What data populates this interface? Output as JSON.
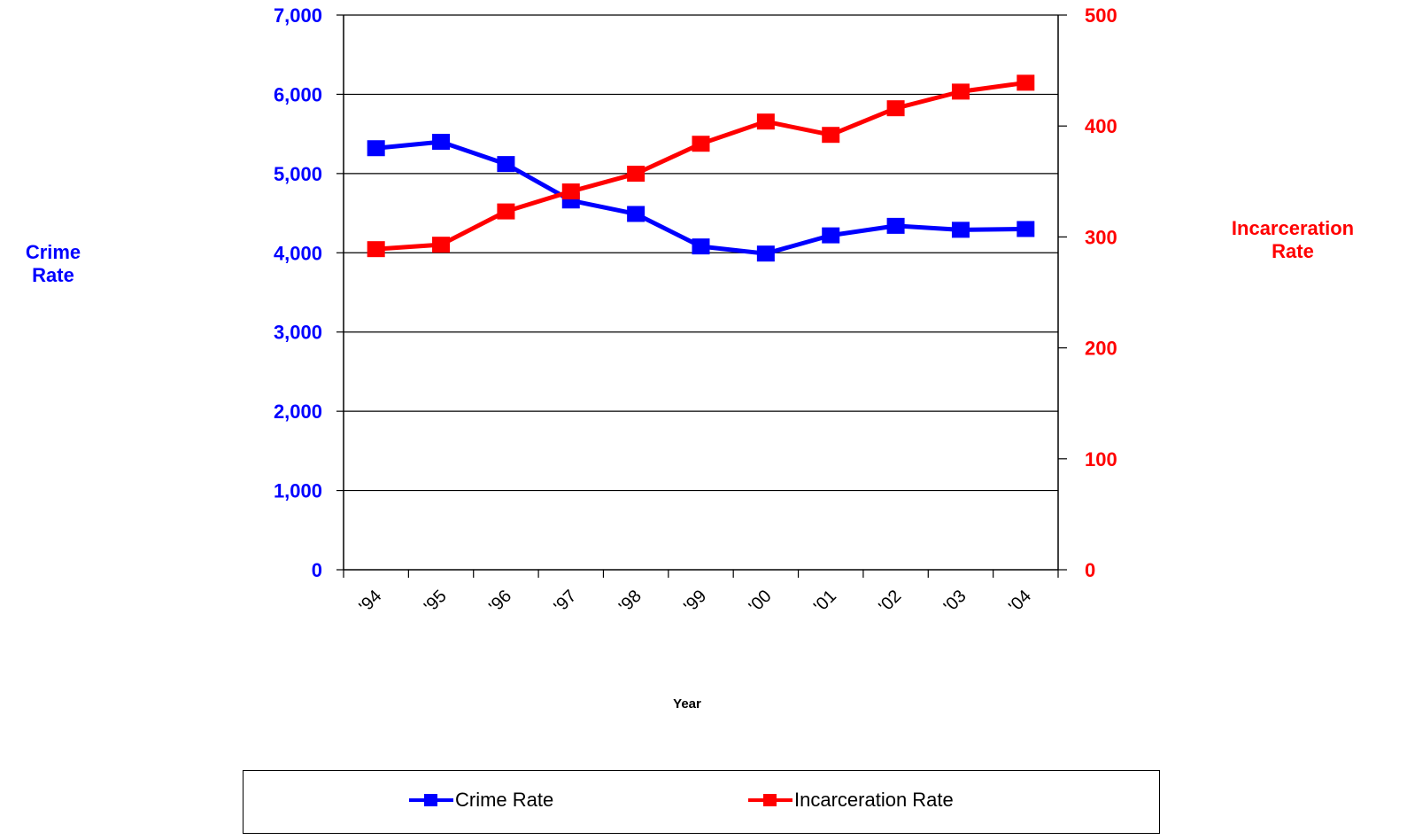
{
  "chart_data": {
    "type": "line",
    "categories": [
      "'94",
      "'95",
      "'96",
      "'97",
      "'98",
      "'99",
      "'00",
      "'01",
      "'02",
      "'03",
      "'04"
    ],
    "xlabel": "Year",
    "y_left": {
      "label": "Crime\nRate",
      "ylim": [
        0,
        7000
      ],
      "ticks": [
        "0",
        "1,000",
        "2,000",
        "3,000",
        "4,000",
        "5,000",
        "6,000",
        "7,000"
      ],
      "tick_values": [
        0,
        1000,
        2000,
        3000,
        4000,
        5000,
        6000,
        7000
      ],
      "color": "#0000ff"
    },
    "y_right": {
      "label": "Incarceration\nRate",
      "ylim": [
        0,
        500
      ],
      "ticks": [
        "0",
        "100",
        "200",
        "300",
        "400",
        "500"
      ],
      "tick_values": [
        0,
        100,
        200,
        300,
        400,
        500
      ],
      "color": "#ff0000"
    },
    "series": [
      {
        "name": "Crime Rate",
        "axis": "left",
        "color": "#0000ff",
        "values": [
          5320,
          5400,
          5120,
          4660,
          4490,
          4080,
          3990,
          4220,
          4340,
          4290,
          4300
        ]
      },
      {
        "name": "Incarceration Rate",
        "axis": "right",
        "color": "#ff0000",
        "values": [
          289,
          293,
          323,
          341,
          357,
          384,
          404,
          392,
          416,
          431,
          439
        ]
      }
    ],
    "grid": "horizontal",
    "legend_position": "bottom"
  }
}
